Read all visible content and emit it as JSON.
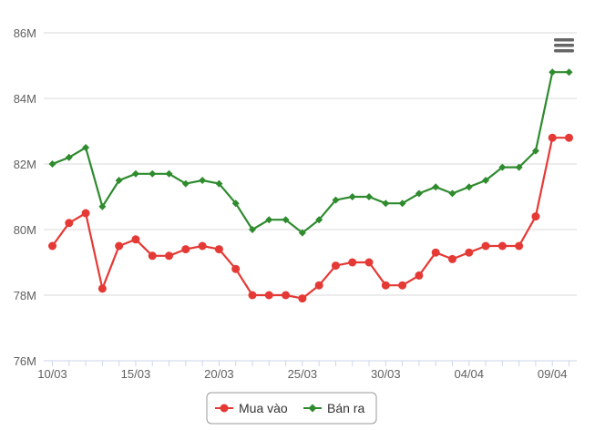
{
  "chart_data": {
    "type": "line",
    "title": "",
    "xlabel": "",
    "ylabel": "",
    "ylim": [
      76,
      86
    ],
    "y_ticks": [
      76,
      78,
      80,
      82,
      84,
      86
    ],
    "y_tick_labels": [
      "76M",
      "78M",
      "80M",
      "82M",
      "84M",
      "86M"
    ],
    "x_tick_labels": [
      {
        "label": "10/03",
        "index": 0
      },
      {
        "label": "15/03",
        "index": 5
      },
      {
        "label": "20/03",
        "index": 10
      },
      {
        "label": "25/03",
        "index": 15
      },
      {
        "label": "30/03",
        "index": 20
      },
      {
        "label": "04/04",
        "index": 25
      },
      {
        "label": "09/04",
        "index": 30
      }
    ],
    "grid": true,
    "legend_position": "bottom-center",
    "series": [
      {
        "name": "Mua vào",
        "color": "#e53935",
        "marker": "circle",
        "values": [
          79.5,
          80.2,
          80.5,
          78.2,
          79.5,
          79.7,
          79.2,
          79.2,
          79.4,
          79.5,
          79.4,
          78.8,
          78.0,
          78.0,
          78.0,
          77.9,
          78.3,
          78.9,
          79.0,
          79.0,
          78.3,
          78.3,
          78.6,
          79.3,
          79.1,
          79.3,
          79.5,
          79.5,
          79.5,
          80.4,
          82.8,
          82.8
        ]
      },
      {
        "name": "Bán ra",
        "color": "#2e8b2e",
        "marker": "diamond",
        "values": [
          82.0,
          82.2,
          82.5,
          80.7,
          81.5,
          81.7,
          81.7,
          81.7,
          81.4,
          81.5,
          81.4,
          80.8,
          80.0,
          80.3,
          80.3,
          79.9,
          80.3,
          80.9,
          81.0,
          81.0,
          80.8,
          80.8,
          81.1,
          81.3,
          81.1,
          81.3,
          81.5,
          81.9,
          81.9,
          82.4,
          84.8,
          84.8
        ]
      }
    ]
  },
  "menu_icon": "hamburger-menu-icon"
}
